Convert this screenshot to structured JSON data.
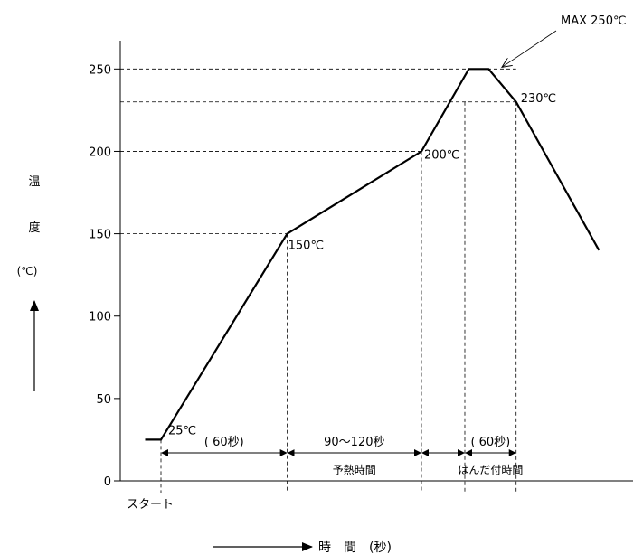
{
  "chart_data": {
    "type": "line",
    "title": "",
    "ylabel": {
      "chars": [
        "温",
        "度"
      ],
      "unit": "(℃)"
    },
    "xlabel": "時　間　(秒)",
    "ylim": [
      0,
      250
    ],
    "yticks": [
      0,
      50,
      100,
      150,
      200,
      250
    ],
    "start_label": "スタート",
    "grid": false,
    "series": [
      {
        "x": [
          -20,
          0,
          160,
          330,
          390,
          415,
          450,
          555
        ],
        "y": [
          25,
          25,
          150,
          200,
          250,
          250,
          230,
          140
        ]
      }
    ],
    "annotations": [
      {
        "text": "25℃",
        "x": 0,
        "y": 25
      },
      {
        "text": "150℃",
        "x": 160,
        "y": 150
      },
      {
        "text": "200℃",
        "x": 330,
        "y": 200
      },
      {
        "text": "230℃",
        "x": 450,
        "y": 230
      },
      {
        "text": "MAX 250℃",
        "x": 400,
        "y": 250
      }
    ],
    "reference_lines": {
      "horizontal": [
        150,
        200,
        230,
        250
      ],
      "vertical": [
        0,
        160,
        330,
        385,
        450
      ]
    },
    "intervals": [
      {
        "from": 0,
        "to": 160,
        "label": "( 60秒)",
        "sublabel": ""
      },
      {
        "from": 160,
        "to": 330,
        "label": "90〜120秒",
        "sublabel": "予熱時間"
      },
      {
        "from": 385,
        "to": 450,
        "label": "( 60秒)",
        "sublabel": "はんだ付時間"
      }
    ]
  }
}
